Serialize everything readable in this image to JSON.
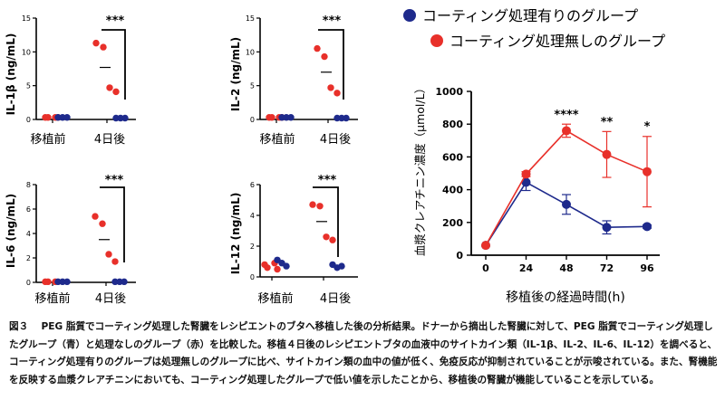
{
  "colors": {
    "coated": "#1e2a8c",
    "uncoated": "#e8302a",
    "axis": "#000000"
  },
  "legend": {
    "coated": "コーティング処理有りのグループ",
    "uncoated": "コーティング処理無しのグループ"
  },
  "caption": "図３　 PEG 脂質でコーティング処理した腎臓をレシピエントのブタへ移植した後の分析結果。ドナーから摘出した腎臓に対して、PEG 脂質でコーティング処理したグループ（青）と処理なしのグループ（赤）を比較した。移植４日後のレシピエントブタの血液中のサイトカイン類（IL-1β、IL-2、IL-6、IL-12）を調べると、コーティング処理有りのグループは処理無しのグループに比べ、サイトカイン類の血中の値が低く、免疫反応が抑制されていることが示唆されている。また、腎機能を反映する血漿クレアチニンにおいても、コーティング処理したグループで低い値を示したことから、移植後の腎臓が機能していることを示している。",
  "chart_data": [
    {
      "type": "scatter",
      "id": "il1b",
      "ylabel": "IL-1β (ng/mL)",
      "ylim": [
        0,
        15
      ],
      "yticks": [
        0,
        5,
        10,
        15
      ],
      "categories": [
        "移植前",
        "4日後"
      ],
      "series": [
        {
          "name": "コーティング処理無しのグループ",
          "color_key": "uncoated",
          "points": [
            [
              0,
              0.3
            ],
            [
              0,
              0.3
            ],
            [
              0,
              0.3
            ],
            [
              0,
              0.3
            ],
            [
              1,
              11.3
            ],
            [
              1,
              10.7
            ],
            [
              1,
              4.7
            ],
            [
              1,
              4.1
            ]
          ],
          "means": [
            0.3,
            7.7
          ]
        },
        {
          "name": "コーティング処理有りのグループ",
          "color_key": "coated",
          "points": [
            [
              0,
              0.3
            ],
            [
              0,
              0.3
            ],
            [
              0,
              0.3
            ],
            [
              1,
              0.2
            ],
            [
              1,
              0.2
            ],
            [
              1,
              0.2
            ]
          ],
          "means": [
            0.3,
            0.2
          ]
        }
      ],
      "significance": "***"
    },
    {
      "type": "scatter",
      "id": "il2",
      "ylabel": "IL-2 (ng/mL)",
      "ylim": [
        0,
        15
      ],
      "yticks": [
        0,
        5,
        10,
        15
      ],
      "categories": [
        "移植前",
        "4日後"
      ],
      "series": [
        {
          "name": "コーティング処理無しのグループ",
          "color_key": "uncoated",
          "points": [
            [
              0,
              0.3
            ],
            [
              0,
              0.3
            ],
            [
              0,
              0.3
            ],
            [
              0,
              0.3
            ],
            [
              1,
              10.5
            ],
            [
              1,
              9.3
            ],
            [
              1,
              4.7
            ],
            [
              1,
              3.9
            ]
          ],
          "means": [
            0.3,
            7.0
          ]
        },
        {
          "name": "コーティング処理有りのグループ",
          "color_key": "coated",
          "points": [
            [
              0,
              0.3
            ],
            [
              0,
              0.3
            ],
            [
              0,
              0.3
            ],
            [
              1,
              0.2
            ],
            [
              1,
              0.2
            ],
            [
              1,
              0.2
            ]
          ],
          "means": [
            0.3,
            0.2
          ]
        }
      ],
      "significance": "***"
    },
    {
      "type": "scatter",
      "id": "il6",
      "ylabel": "IL-6 (ng/mL)",
      "ylim": [
        0,
        8
      ],
      "yticks": [
        0,
        2,
        4,
        6,
        8
      ],
      "categories": [
        "移植前",
        "4日後"
      ],
      "series": [
        {
          "name": "コーティング処理無しのグループ",
          "color_key": "uncoated",
          "points": [
            [
              0,
              0.05
            ],
            [
              0,
              0.05
            ],
            [
              0,
              0.05
            ],
            [
              1,
              5.4
            ],
            [
              1,
              4.8
            ],
            [
              1,
              2.3
            ],
            [
              1,
              1.7
            ]
          ],
          "means": [
            0.05,
            3.5
          ]
        },
        {
          "name": "コーティング処理有りのグループ",
          "color_key": "coated",
          "points": [
            [
              0,
              0.05
            ],
            [
              0,
              0.05
            ],
            [
              0,
              0.05
            ],
            [
              1,
              0.05
            ],
            [
              1,
              0.05
            ],
            [
              1,
              0.05
            ]
          ],
          "means": [
            0.05,
            0.05
          ]
        }
      ],
      "significance": "***"
    },
    {
      "type": "scatter",
      "id": "il12",
      "ylabel": "IL-12 (ng/mL)",
      "ylim": [
        0,
        6
      ],
      "yticks": [
        0,
        2,
        4,
        6
      ],
      "categories": [
        "移植前",
        "4日後"
      ],
      "series": [
        {
          "name": "コーティング処理無しのグループ",
          "color_key": "uncoated",
          "points": [
            [
              0,
              0.8
            ],
            [
              0,
              0.6
            ],
            [
              0,
              0.9
            ],
            [
              0,
              0.5
            ],
            [
              1,
              4.7
            ],
            [
              1,
              4.6
            ],
            [
              1,
              2.6
            ],
            [
              1,
              2.4
            ]
          ],
          "means": [
            0.7,
            3.6
          ]
        },
        {
          "name": "コーティング処理有りのグループ",
          "color_key": "coated",
          "points": [
            [
              0,
              1.1
            ],
            [
              0,
              0.9
            ],
            [
              0,
              0.7
            ],
            [
              1,
              0.8
            ],
            [
              1,
              0.6
            ],
            [
              1,
              0.7
            ]
          ],
          "means": [
            0.9,
            0.7
          ]
        }
      ],
      "significance": "***"
    },
    {
      "type": "line",
      "id": "creatinine",
      "ylabel": "血漿クレアチニン濃度（μmol/L）",
      "xlabel": "移植後の経過時間(h)",
      "x": [
        0,
        24,
        48,
        72,
        96
      ],
      "ylim": [
        0,
        1000
      ],
      "yticks": [
        0,
        200,
        400,
        600,
        800,
        1000
      ],
      "series": [
        {
          "name": "コーティング処理有りのグループ",
          "color_key": "coated",
          "values": [
            60,
            445,
            310,
            170,
            175
          ],
          "errors": [
            0,
            50,
            60,
            40,
            10
          ]
        },
        {
          "name": "コーティング処理無しのグループ",
          "color_key": "uncoated",
          "values": [
            60,
            495,
            760,
            615,
            510
          ],
          "errors": [
            0,
            15,
            40,
            140,
            215
          ]
        }
      ],
      "significance": [
        "",
        "",
        "****",
        "**",
        "*"
      ]
    }
  ]
}
